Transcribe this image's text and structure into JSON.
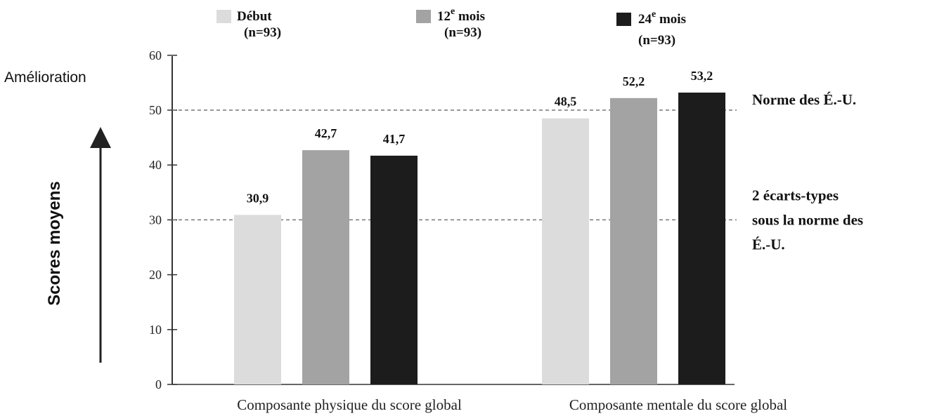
{
  "chart_data": {
    "type": "bar",
    "ylabel": "Scores moyens",
    "y_direction_label": "Amélioration",
    "ylim": [
      0,
      60
    ],
    "yticks": [
      0,
      10,
      20,
      30,
      40,
      50,
      60
    ],
    "categories": [
      "Composante physique du score global",
      "Composante mentale du score global"
    ],
    "series": [
      {
        "name": "Début",
        "n_label": "(n=93)",
        "color": "#dcdcdc",
        "values": [
          30.9,
          48.5
        ],
        "value_labels": [
          "30,9",
          "48,5"
        ]
      },
      {
        "name": "12e mois",
        "base": "12",
        "sup": "e",
        "rest": " mois",
        "n_label": "(n=93)",
        "color": "#a3a3a3",
        "values": [
          42.7,
          52.2
        ],
        "value_labels": [
          "42,7",
          "52,2"
        ]
      },
      {
        "name": "24e mois",
        "base": "24",
        "sup": "e",
        "rest": " mois",
        "n_label": "(n=93)",
        "color": "#1c1c1c",
        "values": [
          41.7,
          53.2
        ],
        "value_labels": [
          "41,7",
          "53,2"
        ]
      }
    ],
    "reference_lines": [
      {
        "value": 50,
        "label_lines": [
          "Norme des É.-U."
        ]
      },
      {
        "value": 30,
        "label_lines": [
          "2 écarts-types",
          "sous la norme des",
          "É.-U."
        ]
      }
    ],
    "grid": false,
    "legend_position": "top"
  }
}
